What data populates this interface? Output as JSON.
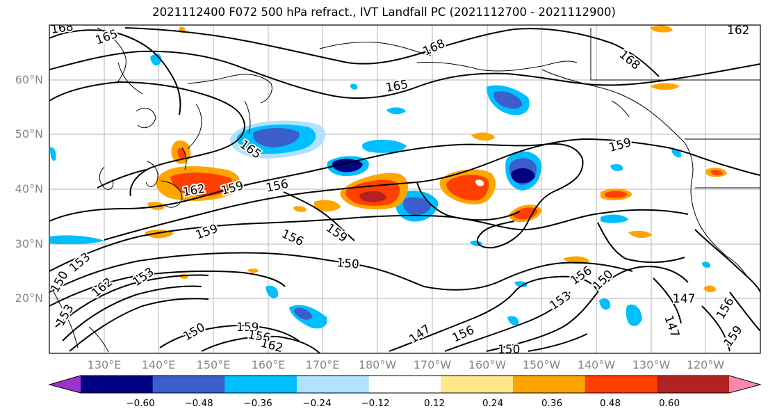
{
  "title": "2021112400 F072 500 hPa refract., IVT Landfall PC (2021112700 - 2021112900)",
  "map": {
    "lat_labels": [
      "60°N",
      "50°N",
      "40°N",
      "30°N",
      "20°N"
    ],
    "lon_labels": [
      "130°E",
      "140°E",
      "150°E",
      "160°E",
      "170°E",
      "180°W",
      "170°W",
      "160°W",
      "150°W",
      "140°W",
      "130°W",
      "120°W"
    ],
    "contour_labels": [
      "168",
      "165",
      "168",
      "162",
      "165",
      "168",
      "165",
      "159",
      "162",
      "159",
      "156",
      "159",
      "159",
      "156",
      "150",
      "153",
      "162",
      "153",
      "150",
      "153",
      "156",
      "150",
      "147",
      "156",
      "147",
      "156",
      "159",
      "147",
      "150",
      "159",
      "156",
      "162",
      "153",
      "150"
    ]
  },
  "colorbar": {
    "colors": [
      "#9a32cd",
      "#000080",
      "#3a5fcd",
      "#00bfff",
      "#b0e2ff",
      "#ffffff",
      "#ffe88b",
      "#ffa500",
      "#ff4000",
      "#b22222",
      "#ff88aa"
    ],
    "tick_labels": [
      "−0.60",
      "−0.48",
      "−0.36",
      "−0.24",
      "−0.12",
      "0.12",
      "0.24",
      "0.36",
      "0.48",
      "0.60"
    ]
  }
}
